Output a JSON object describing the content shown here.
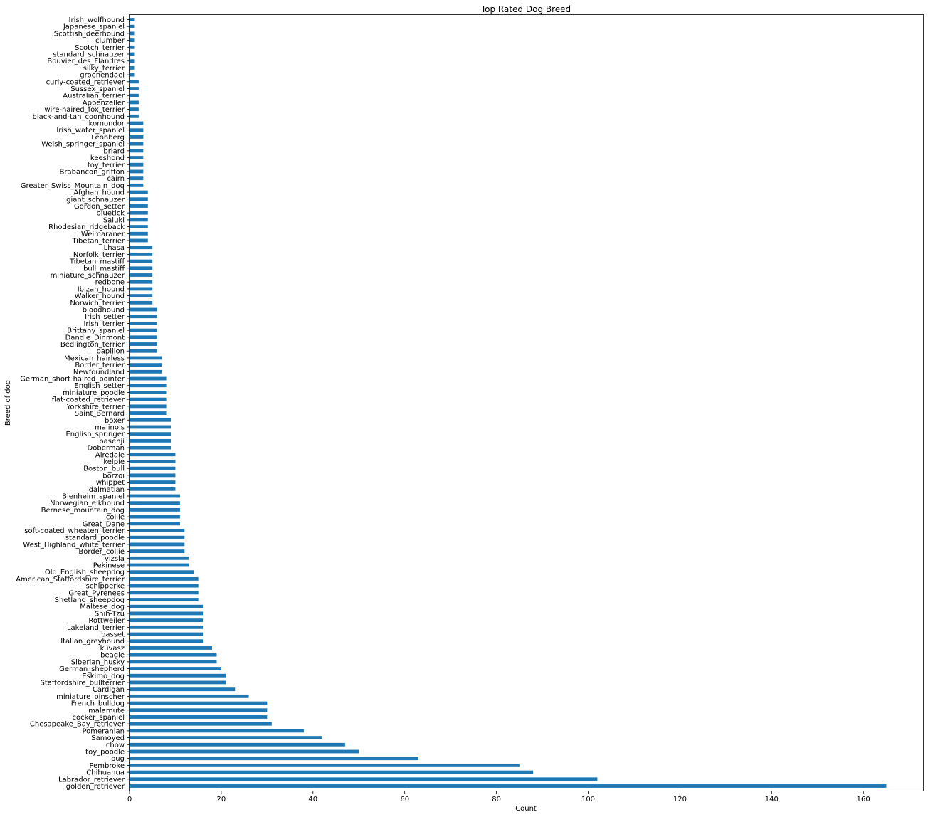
{
  "chart_data": {
    "type": "bar",
    "orientation": "horizontal",
    "title": "Top Rated Dog Breed",
    "xlabel": "Count",
    "ylabel": "Breed of dog",
    "xlim": [
      0,
      173
    ],
    "xticks": [
      0,
      20,
      40,
      60,
      80,
      100,
      120,
      140,
      160
    ],
    "grid": false,
    "bar_color": "#1f77b4",
    "categories": [
      "golden_retriever",
      "Labrador_retriever",
      "Chihuahua",
      "Pembroke",
      "pug",
      "toy_poodle",
      "chow",
      "Samoyed",
      "Pomeranian",
      "Chesapeake_Bay_retriever",
      "cocker_spaniel",
      "malamute",
      "French_bulldog",
      "miniature_pinscher",
      "Cardigan",
      "Staffordshire_bullterrier",
      "Eskimo_dog",
      "German_shepherd",
      "Siberian_husky",
      "beagle",
      "kuvasz",
      "Italian_greyhound",
      "basset",
      "Lakeland_terrier",
      "Rottweiler",
      "Shih-Tzu",
      "Maltese_dog",
      "Shetland_sheepdog",
      "Great_Pyrenees",
      "schipperke",
      "American_Staffordshire_terrier",
      "Old_English_sheepdog",
      "Pekinese",
      "vizsla",
      "Border_collie",
      "West_Highland_white_terrier",
      "standard_poodle",
      "soft-coated_wheaten_terrier",
      "Great_Dane",
      "collie",
      "Bernese_mountain_dog",
      "Norwegian_elkhound",
      "Blenheim_spaniel",
      "dalmatian",
      "whippet",
      "borzoi",
      "Boston_bull",
      "kelpie",
      "Airedale",
      "Doberman",
      "basenji",
      "English_springer",
      "malinois",
      "boxer",
      "Saint_Bernard",
      "Yorkshire_terrier",
      "flat-coated_retriever",
      "miniature_poodle",
      "English_setter",
      "German_short-haired_pointer",
      "Newfoundland",
      "Border_terrier",
      "Mexican_hairless",
      "papillon",
      "Bedlington_terrier",
      "Dandie_Dinmont",
      "Brittany_spaniel",
      "Irish_terrier",
      "Irish_setter",
      "bloodhound",
      "Norwich_terrier",
      "Walker_hound",
      "Ibizan_hound",
      "redbone",
      "miniature_schnauzer",
      "bull_mastiff",
      "Tibetan_mastiff",
      "Norfolk_terrier",
      "Lhasa",
      "Tibetan_terrier",
      "Weimaraner",
      "Rhodesian_ridgeback",
      "Saluki",
      "bluetick",
      "Gordon_setter",
      "giant_schnauzer",
      "Afghan_hound",
      "Greater_Swiss_Mountain_dog",
      "cairn",
      "Brabancon_griffon",
      "toy_terrier",
      "keeshond",
      "briard",
      "Welsh_springer_spaniel",
      "Leonberg",
      "Irish_water_spaniel",
      "komondor",
      "black-and-tan_coonhound",
      "wire-haired_fox_terrier",
      "Appenzeller",
      "Australian_terrier",
      "Sussex_spaniel",
      "curly-coated_retriever",
      "groenendael",
      "silky_terrier",
      "Bouvier_des_Flandres",
      "standard_schnauzer",
      "Scotch_terrier",
      "clumber",
      "Scottish_deerhound",
      "Japanese_spaniel",
      "Irish_wolfhound"
    ],
    "values": [
      165,
      102,
      88,
      85,
      63,
      50,
      47,
      42,
      38,
      31,
      30,
      30,
      30,
      26,
      23,
      21,
      21,
      20,
      19,
      19,
      18,
      16,
      16,
      16,
      16,
      16,
      16,
      15,
      15,
      15,
      15,
      14,
      13,
      13,
      12,
      12,
      12,
      12,
      11,
      11,
      11,
      11,
      11,
      10,
      10,
      10,
      10,
      10,
      10,
      9,
      9,
      9,
      9,
      9,
      8,
      8,
      8,
      8,
      8,
      8,
      7,
      7,
      7,
      6,
      6,
      6,
      6,
      6,
      6,
      6,
      5,
      5,
      5,
      5,
      5,
      5,
      5,
      5,
      5,
      4,
      4,
      4,
      4,
      4,
      4,
      4,
      4,
      3,
      3,
      3,
      3,
      3,
      3,
      3,
      3,
      3,
      3,
      2,
      2,
      2,
      2,
      2,
      2,
      1,
      1,
      1,
      1,
      1,
      1,
      1,
      1,
      1
    ]
  }
}
